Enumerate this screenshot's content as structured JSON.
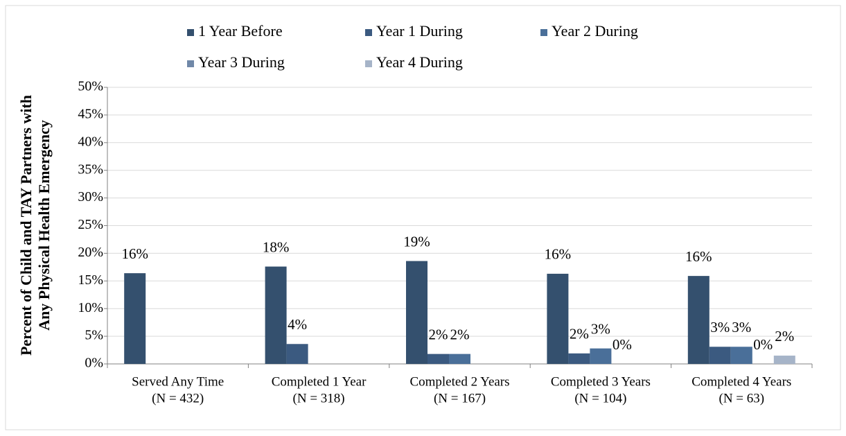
{
  "chart_data": {
    "type": "bar",
    "ylabel": [
      "Percent of Child and TAY Partners with",
      "Any Physical Health Emergency"
    ],
    "categories": [
      [
        "Served Any Time",
        "(N = 432)"
      ],
      [
        "Completed 1 Year",
        "(N = 318)"
      ],
      [
        "Completed 2 Years",
        "(N = 167)"
      ],
      [
        "Completed 3 Years",
        "(N = 104)"
      ],
      [
        "Completed 4 Years",
        "(N = 63)"
      ]
    ],
    "series": [
      {
        "name": "1 Year Before",
        "color": "#34506e",
        "values": [
          16.4,
          17.6,
          18.6,
          16.3,
          15.9
        ],
        "value_labels": [
          "16%",
          "18%",
          "19%",
          "16%",
          "16%"
        ]
      },
      {
        "name": "Year 1 During",
        "color": "#3b5a80",
        "values": [
          null,
          3.6,
          1.8,
          1.9,
          3.1
        ],
        "value_labels": [
          null,
          "4%",
          "2%",
          "2%",
          "3%"
        ]
      },
      {
        "name": "Year 2 During",
        "color": "#4a6f99",
        "values": [
          null,
          null,
          1.8,
          2.8,
          3.1
        ],
        "value_labels": [
          null,
          null,
          "2%",
          "3%",
          "3%"
        ]
      },
      {
        "name": "Year 3 During",
        "color": "#7088a8",
        "values": [
          null,
          null,
          null,
          0,
          0
        ],
        "value_labels": [
          null,
          null,
          null,
          "0%",
          "0%"
        ]
      },
      {
        "name": "Year 4 During",
        "color": "#a6b4c8",
        "values": [
          null,
          null,
          null,
          null,
          1.5
        ],
        "value_labels": [
          null,
          null,
          null,
          null,
          "2%"
        ]
      }
    ],
    "ylim": [
      0,
      50
    ],
    "yticks": [
      {
        "value": 0,
        "label": "0%"
      },
      {
        "value": 5,
        "label": "5%"
      },
      {
        "value": 10,
        "label": "10%"
      },
      {
        "value": 15,
        "label": "15%"
      },
      {
        "value": 20,
        "label": "20%"
      },
      {
        "value": 25,
        "label": "25%"
      },
      {
        "value": 30,
        "label": "30%"
      },
      {
        "value": 35,
        "label": "35%"
      },
      {
        "value": 40,
        "label": "40%"
      },
      {
        "value": 45,
        "label": "45%"
      },
      {
        "value": 50,
        "label": "50%"
      }
    ],
    "grid": true,
    "legend": "top"
  }
}
